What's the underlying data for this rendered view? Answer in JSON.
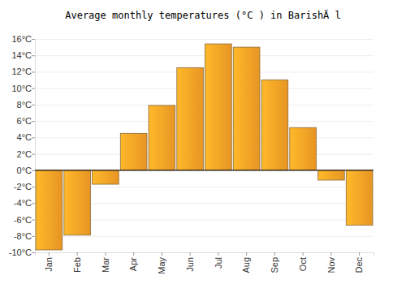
{
  "chart_data": {
    "type": "bar",
    "title": "Average monthly temperatures (°C ) in BarishÄ l",
    "categories": [
      "Jan",
      "Feb",
      "Mar",
      "Apr",
      "May",
      "Jun",
      "Jul",
      "Aug",
      "Sep",
      "Oct",
      "Nov",
      "Dec"
    ],
    "values": [
      -9.7,
      -7.9,
      -1.7,
      4.5,
      7.9,
      12.5,
      15.4,
      15.0,
      11.0,
      5.2,
      -1.2,
      -6.7
    ],
    "color": "#fca326",
    "ylim": [
      -10,
      16
    ],
    "yticks": [
      {
        "value": -10,
        "label": "-10°C"
      },
      {
        "value": -8,
        "label": "-8°C"
      },
      {
        "value": -6,
        "label": "-6°C"
      },
      {
        "value": -4,
        "label": "-4°C"
      },
      {
        "value": -2,
        "label": "-2°C"
      },
      {
        "value": 0,
        "label": "0°C"
      },
      {
        "value": 2,
        "label": "2°C"
      },
      {
        "value": 4,
        "label": "4°C"
      },
      {
        "value": 6,
        "label": "6°C"
      },
      {
        "value": 8,
        "label": "8°C"
      },
      {
        "value": 10,
        "label": "10°C"
      },
      {
        "value": 12,
        "label": "12°C"
      },
      {
        "value": 14,
        "label": "14°C"
      },
      {
        "value": 16,
        "label": "16°C"
      }
    ],
    "grid": true
  }
}
